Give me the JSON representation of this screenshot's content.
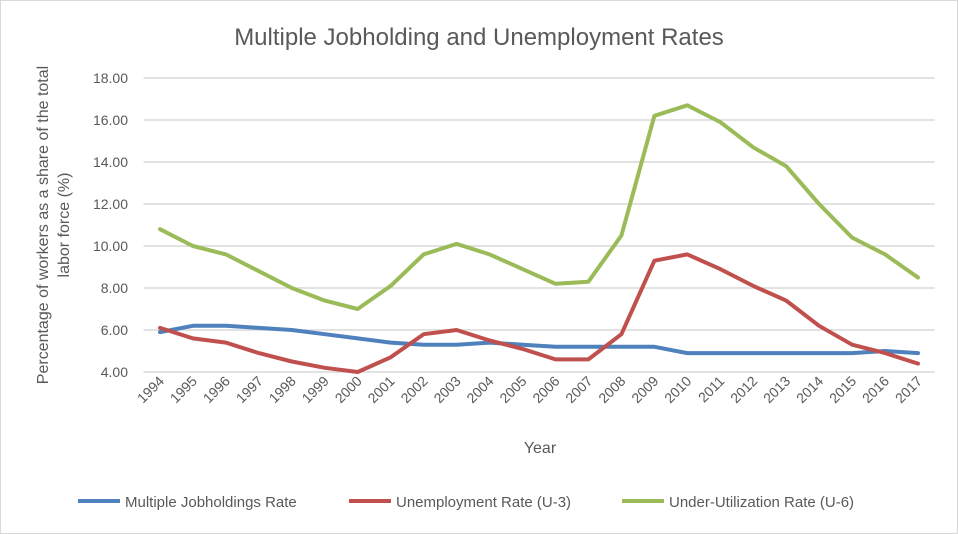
{
  "chart_data": {
    "type": "line",
    "title": "Multiple Jobholding and Unemployment Rates",
    "xlabel": "Year",
    "ylabel": "Percentage of workers as a share of the total labor force (%)",
    "ylabel_lines": [
      "Percentage of workers as a share of the total",
      "labor force (%)"
    ],
    "ylim": [
      4,
      18
    ],
    "yticks": [
      "4.00",
      "6.00",
      "8.00",
      "10.00",
      "12.00",
      "14.00",
      "16.00",
      "18.00"
    ],
    "grid": true,
    "legend": "bottom",
    "categories": [
      "1994",
      "1995",
      "1996",
      "1997",
      "1998",
      "1999",
      "2000",
      "2001",
      "2002",
      "2003",
      "2004",
      "2005",
      "2006",
      "2007",
      "2008",
      "2009",
      "2010",
      "2011",
      "2012",
      "2013",
      "2014",
      "2015",
      "2016",
      "2017"
    ],
    "series": [
      {
        "name": "Multiple Jobholdings Rate",
        "color": "#4f81bd",
        "values": [
          5.9,
          6.2,
          6.2,
          6.1,
          6.0,
          5.8,
          5.6,
          5.4,
          5.3,
          5.3,
          5.4,
          5.3,
          5.2,
          5.2,
          5.2,
          5.2,
          4.9,
          4.9,
          4.9,
          4.9,
          4.9,
          4.9,
          5.0,
          4.9
        ]
      },
      {
        "name": "Unemployment Rate (U-3)",
        "color": "#c0504d",
        "values": [
          6.1,
          5.6,
          5.4,
          4.9,
          4.5,
          4.2,
          4.0,
          4.7,
          5.8,
          6.0,
          5.5,
          5.1,
          4.6,
          4.6,
          5.8,
          9.3,
          9.6,
          8.9,
          8.1,
          7.4,
          6.2,
          5.3,
          4.9,
          4.4
        ]
      },
      {
        "name": "Under-Utilization Rate (U-6)",
        "color": "#9bbb59",
        "values": [
          10.8,
          10.0,
          9.6,
          8.8,
          8.0,
          7.4,
          7.0,
          8.1,
          9.6,
          10.1,
          9.6,
          8.9,
          8.2,
          8.3,
          10.5,
          16.2,
          16.7,
          15.9,
          14.7,
          13.8,
          12.0,
          10.4,
          9.6,
          8.5
        ]
      }
    ]
  }
}
